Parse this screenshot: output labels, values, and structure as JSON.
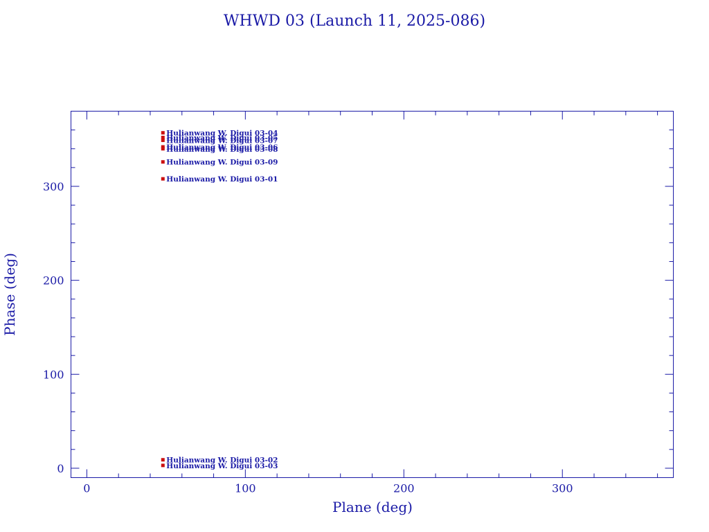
{
  "chart_data": {
    "type": "scatter",
    "title": "WHWD 03 (Launch 11, 2025-086)",
    "xlabel": "Plane (deg)",
    "ylabel": "Phase (deg)",
    "xlim": [
      -10,
      370
    ],
    "ylim": [
      -10,
      380
    ],
    "xticks": [
      0,
      100,
      200,
      300
    ],
    "yticks": [
      0,
      100,
      200,
      300
    ],
    "xminor_step": 20,
    "yminor_step": 20,
    "grid": false,
    "marker_color": "#cc1111",
    "text_color": "#1a1aa6",
    "points": [
      {
        "x": 48,
        "y": 357,
        "label": "Hulianwang W. Digui 03-04"
      },
      {
        "x": 48,
        "y": 352,
        "label": "Hulianwang W. Digui 03-05"
      },
      {
        "x": 48,
        "y": 349,
        "label": "Hulianwang W. Digui 03-07"
      },
      {
        "x": 48,
        "y": 342,
        "label": "Hulianwang W. Digui 03-06"
      },
      {
        "x": 48,
        "y": 340,
        "label": "Hulianwang W. Digui 03-08"
      },
      {
        "x": 48,
        "y": 326,
        "label": "Hulianwang W. Digui 03-09"
      },
      {
        "x": 48,
        "y": 308,
        "label": "Hulianwang W. Digui 03-01"
      },
      {
        "x": 48,
        "y": 9,
        "label": "Hulianwang W. Digui 03-02"
      },
      {
        "x": 48,
        "y": 3,
        "label": "Hulianwang W. Digui 03-03"
      }
    ]
  }
}
